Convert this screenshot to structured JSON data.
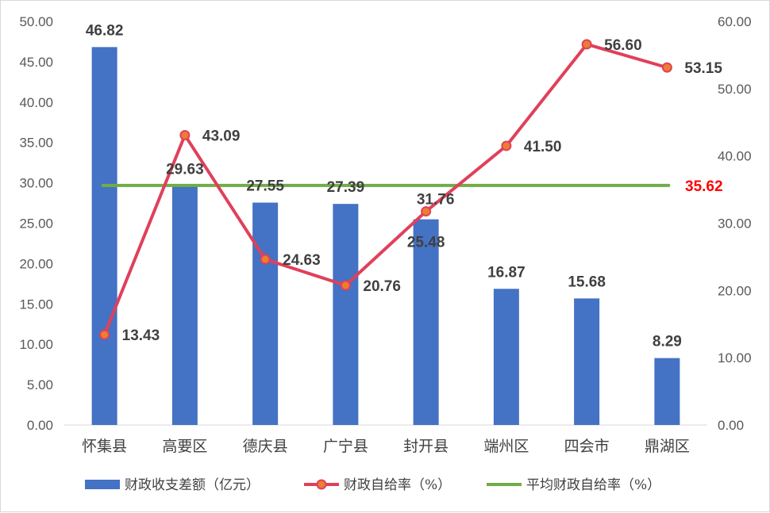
{
  "chart_data": {
    "type": "bar",
    "categories": [
      "怀集县",
      "高要区",
      "德庆县",
      "广宁县",
      "封开县",
      "端州区",
      "四会市",
      "鼎湖区"
    ],
    "series": [
      {
        "name": "财政收支差额（亿元）",
        "type": "bar",
        "axis": "left",
        "color": "#4472c4",
        "values": [
          46.82,
          29.63,
          27.55,
          27.39,
          25.48,
          16.87,
          15.68,
          8.29
        ],
        "labels": [
          "46.82",
          "29.63",
          "27.55",
          "27.39",
          "25.48",
          "16.87",
          "15.68",
          "8.29"
        ]
      },
      {
        "name": "财政自给率（%）",
        "type": "line",
        "axis": "right",
        "color": "#e0405b",
        "marker_color": "#ed7d31",
        "values": [
          13.43,
          43.09,
          24.63,
          20.76,
          31.76,
          41.5,
          56.6,
          53.15
        ],
        "labels": [
          "13.43",
          "43.09",
          "24.63",
          "20.76",
          "31.76",
          "41.50",
          "56.60",
          "53.15"
        ]
      },
      {
        "name": "平均财政自给率（%）",
        "type": "line",
        "axis": "right",
        "color": "#70ad47",
        "value": 35.62,
        "label": "35.62",
        "label_color": "#ff0000"
      }
    ],
    "y_left": {
      "ylim": [
        0,
        50
      ],
      "ticks": [
        "0.00",
        "5.00",
        "10.00",
        "15.00",
        "20.00",
        "25.00",
        "30.00",
        "35.00",
        "40.00",
        "45.00",
        "50.00"
      ]
    },
    "y_right": {
      "ylim": [
        0,
        60
      ],
      "ticks": [
        "0.00",
        "10.00",
        "20.00",
        "30.00",
        "40.00",
        "50.00",
        "60.00"
      ]
    },
    "grid": false,
    "legend": "bottom"
  }
}
